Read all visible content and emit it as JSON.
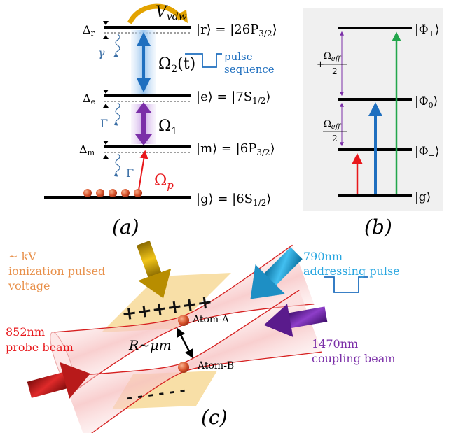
{
  "panel_a": {
    "vvdw": "V",
    "vvdw_sub": "vdw",
    "delta_r": "Δ",
    "delta_r_sub": "r",
    "delta_e": "Δ",
    "delta_e_sub": "e",
    "delta_m": "Δ",
    "delta_m_sub": "m",
    "gamma": "γ",
    "Gamma1": "Γ",
    "Gamma2": "Γ",
    "omega2": "Ω",
    "omega2_sub": "2",
    "omega2_arg": "(t)",
    "omega1": "Ω",
    "omega1_sub": "1",
    "omegap": "Ω",
    "omegap_sub": "p",
    "pulse_line1": "pulse",
    "pulse_line2": "sequence",
    "state_r": "|r⟩ = |26P",
    "state_r_sub": "3/2",
    "state_e": "|e⟩ = |7S",
    "state_e_sub": "1/2",
    "state_m": "|m⟩ = |6P",
    "state_m_sub": "3/2",
    "state_g": "|g⟩ = |6S",
    "state_g_sub": "1/2",
    "ket_close": "⟩",
    "caption": "(a)"
  },
  "panel_b": {
    "phi_plus": "|Φ",
    "phi_plus_sub": "+",
    "phi_zero": "|Φ",
    "phi_zero_sub": "0",
    "phi_minus": "|Φ",
    "phi_minus_sub": "−",
    "g": "|g⟩",
    "ket_close": "⟩",
    "plus_sign": "+",
    "minus_sign": "-",
    "omega_eff": "Ω",
    "omega_eff_sub": "eff",
    "denominator": "2",
    "caption": "(b)"
  },
  "panel_c": {
    "kv_line1": "~ kV",
    "kv_line2": "ionization pulsed",
    "kv_line3": "voltage",
    "addr_line1": "790nm",
    "addr_line2": "addressing pulse",
    "probe_line1": "852nm",
    "probe_line2": "probe beam",
    "coupling_line1": "1470nm",
    "coupling_line2": "coupling beam",
    "plus_signs": "++++++",
    "minus_signs": "- - - - - -",
    "atom_a": "Atom-A",
    "atom_b": "Atom-B",
    "distance": "R~μm",
    "caption": "(c)"
  },
  "colors": {
    "red": "#e8171b",
    "blue": "#1f6fbf",
    "purple": "#7b2fa8",
    "green": "#22a64b",
    "orange": "#e8904a",
    "cyan": "#27a6e0",
    "gold": "#d9a800",
    "panel_b_bg": "#f0f0f0"
  }
}
